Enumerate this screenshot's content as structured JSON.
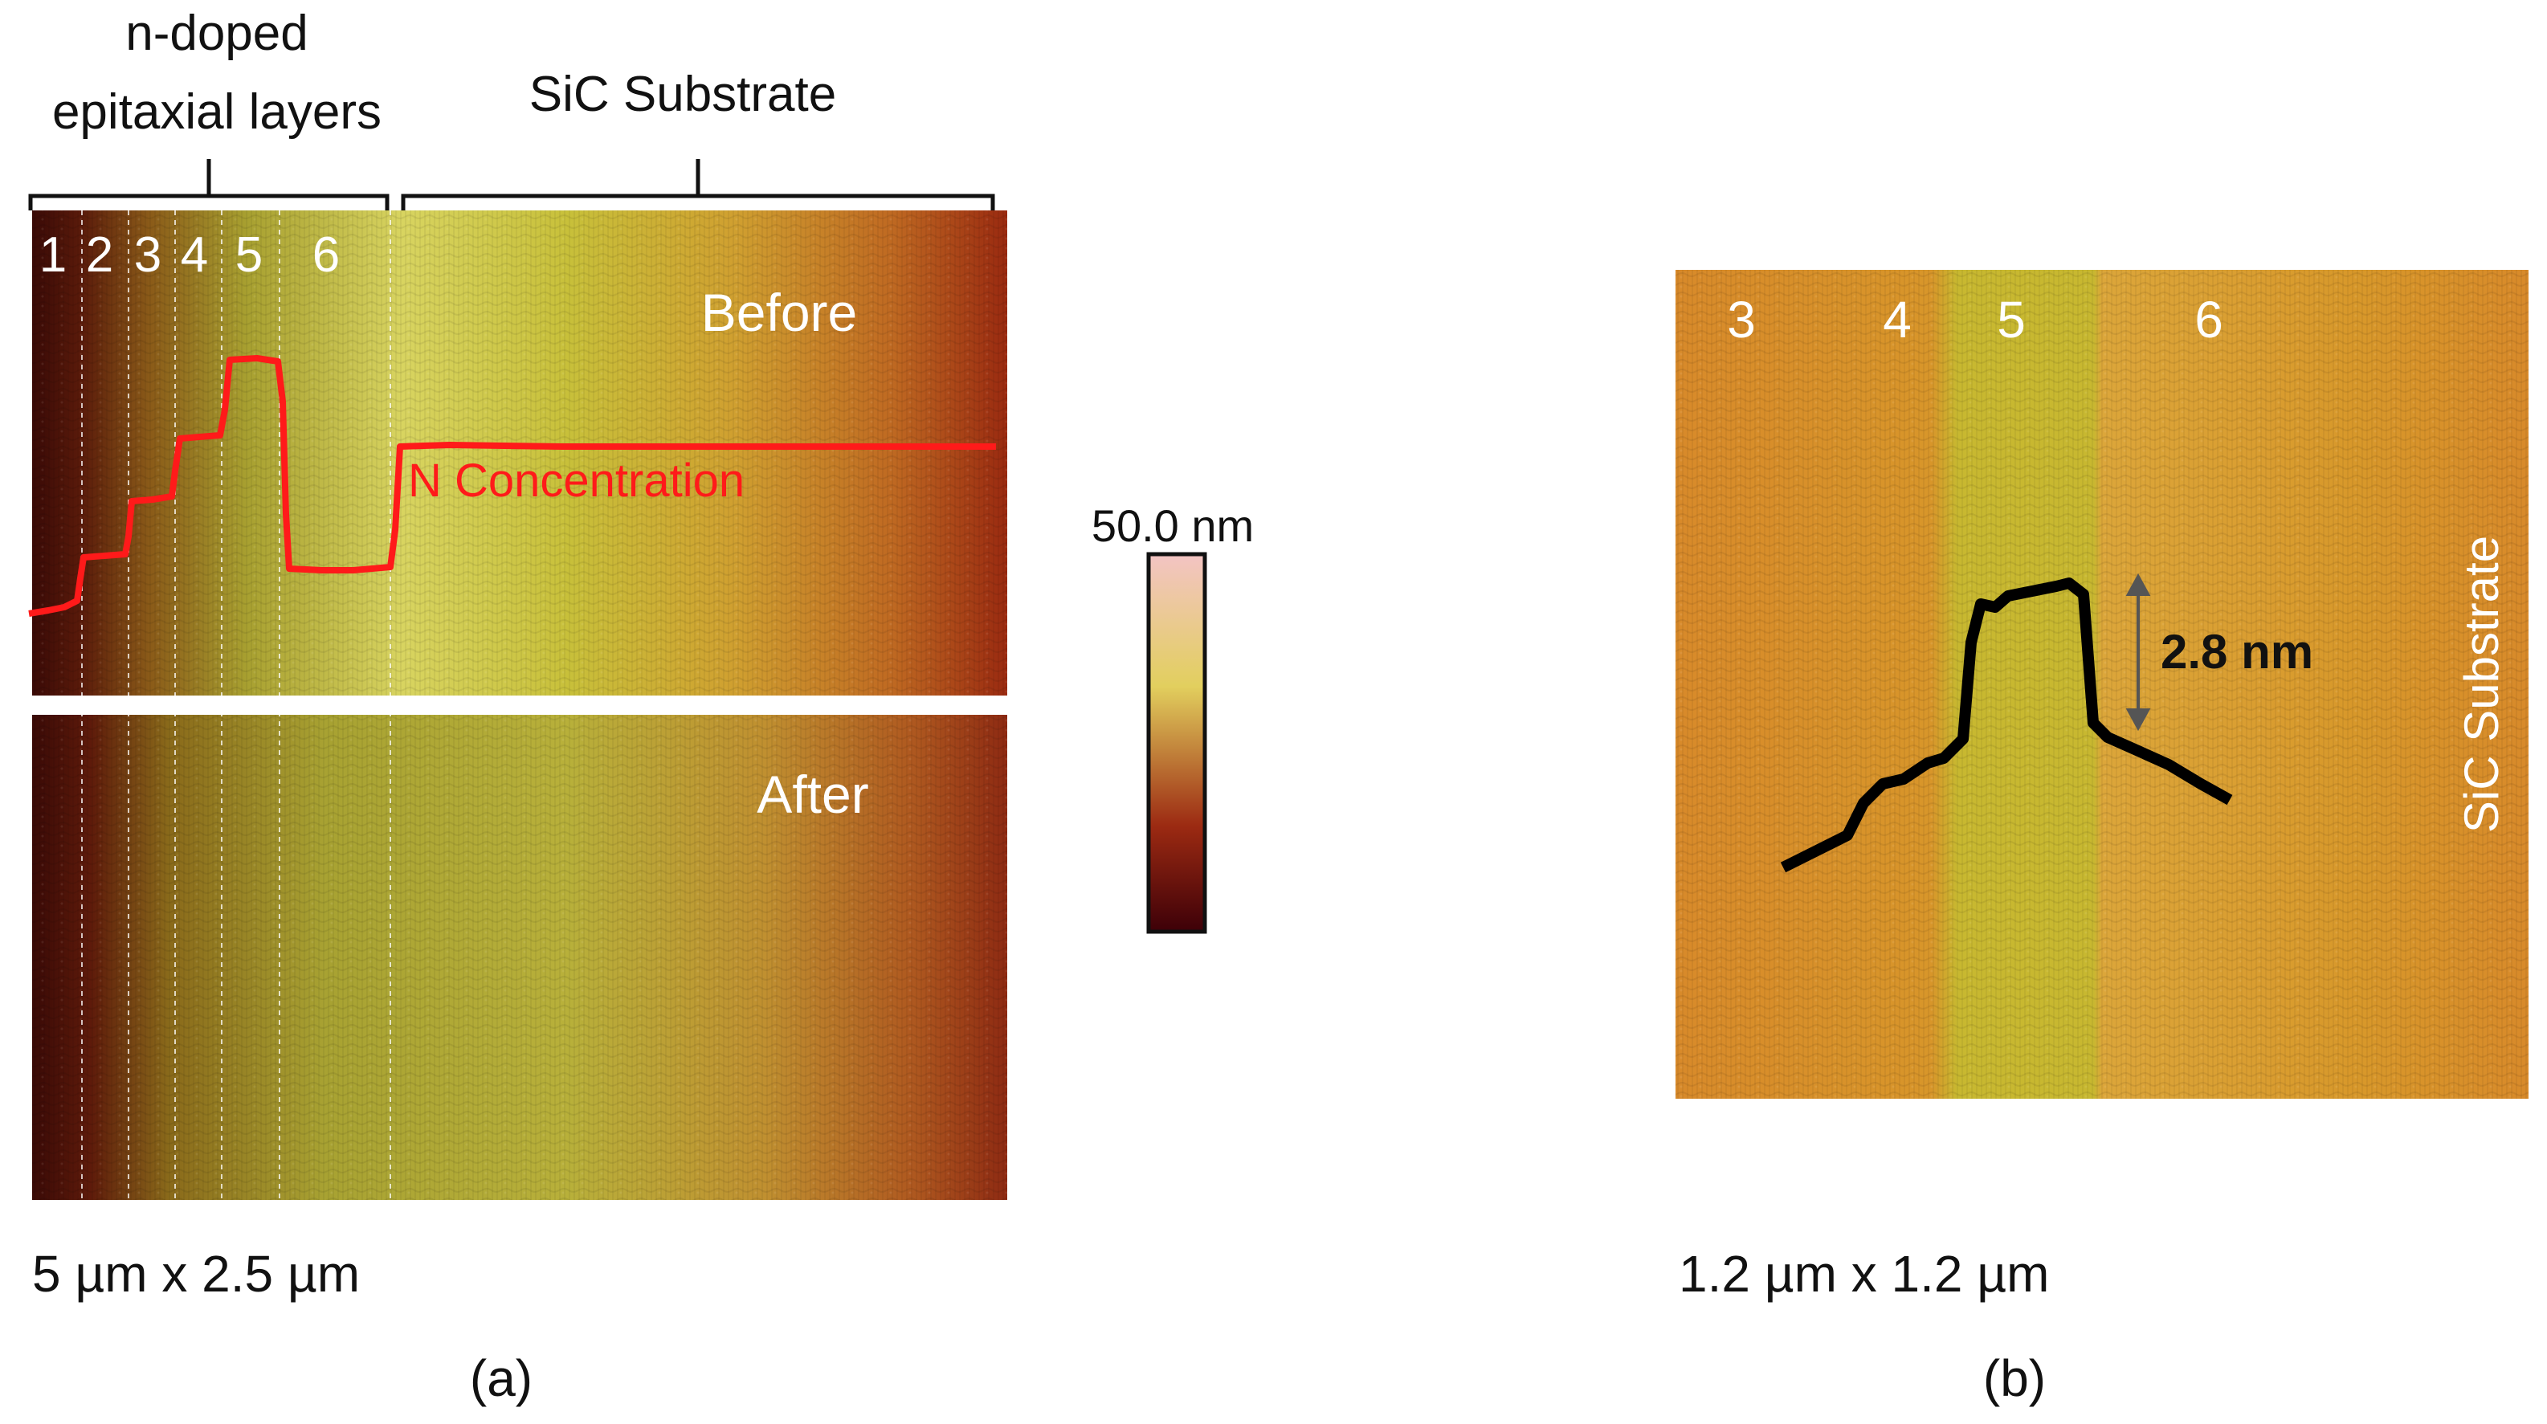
{
  "panel_a": {
    "header_epi": [
      "n-doped",
      "epitaxial layers"
    ],
    "header_substrate": "SiC Substrate",
    "layer_labels": [
      "1",
      "2",
      "3",
      "4",
      "5",
      "6"
    ],
    "before_label": "Before",
    "after_label": "After",
    "profile_label": "N Concentration",
    "profile_color": "#ff1a1a",
    "scan_size": "5 µm x 2.5 µm",
    "caption": "(a)"
  },
  "colorbar": {
    "max_label": "50.0 nm",
    "colors": [
      "#f3c4c4",
      "#e2cf5e",
      "#9c2a12",
      "#3d0008"
    ]
  },
  "panel_b": {
    "layer_labels": [
      "3",
      "4",
      "5",
      "6"
    ],
    "substrate_label": "SiC Substrate",
    "step_label": "2.8 nm",
    "scan_size": "1.2 µm x 1.2 µm",
    "caption": "(b)"
  }
}
